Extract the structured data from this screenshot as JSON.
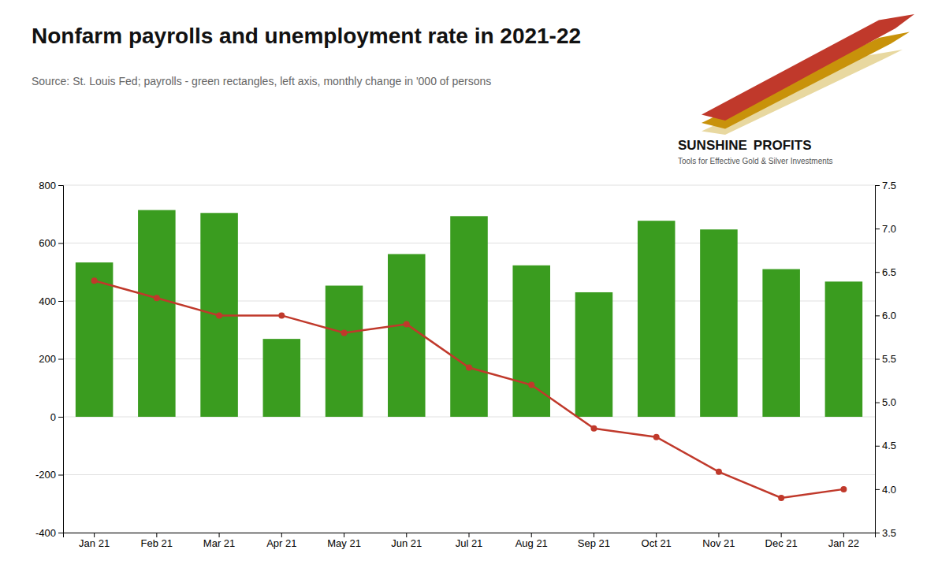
{
  "chart_data": {
    "type": "bar",
    "title": "Nonfarm payrolls and unemployment rate in 2021-22",
    "subtitle": "Source: St. Louis Fed; payrolls - green rectangles, left axis, monthly change in '000 of persons",
    "annotations": [
      "SUNSHINE",
      "PROFITS",
      "Tools for Effective Gold & Silver Investments"
    ],
    "categories": [
      "Jan 21",
      "Feb 21",
      "Mar 21",
      "Apr 21",
      "May 21",
      "Jun 21",
      "Jul 21",
      "Aug 21",
      "Sep 21",
      "Oct 21",
      "Nov 21",
      "Dec 21",
      "Jan 22"
    ],
    "series": [
      {
        "type": "bar",
        "color": "#3a9c1f",
        "values": [
          533,
          714,
          704,
          269,
          453,
          562,
          693,
          523,
          430,
          677,
          647,
          510,
          467
        ]
      },
      {
        "type": "line",
        "axis": "y2",
        "color": "#C0392B",
        "marker": "circle",
        "values": [
          6.4,
          6.2,
          6.0,
          6.0,
          5.8,
          5.9,
          5.4,
          5.2,
          4.7,
          4.6,
          4.2,
          3.9,
          4.0
        ]
      }
    ],
    "ylim": [
      -400,
      800
    ],
    "yticks": [
      -400,
      -200,
      0,
      200,
      400,
      600,
      800
    ],
    "y2lim": [
      3.5,
      7.5
    ],
    "y2ticks": [
      3.5,
      {
        "value": 4.0,
        "label": "4.0"
      },
      4.5,
      {
        "value": 5.0,
        "label": "5.0"
      },
      5.5,
      {
        "value": 6.0,
        "label": "6.0"
      },
      6.5,
      {
        "value": 7.0,
        "label": "7.0"
      },
      7.5
    ],
    "grid": true
  }
}
